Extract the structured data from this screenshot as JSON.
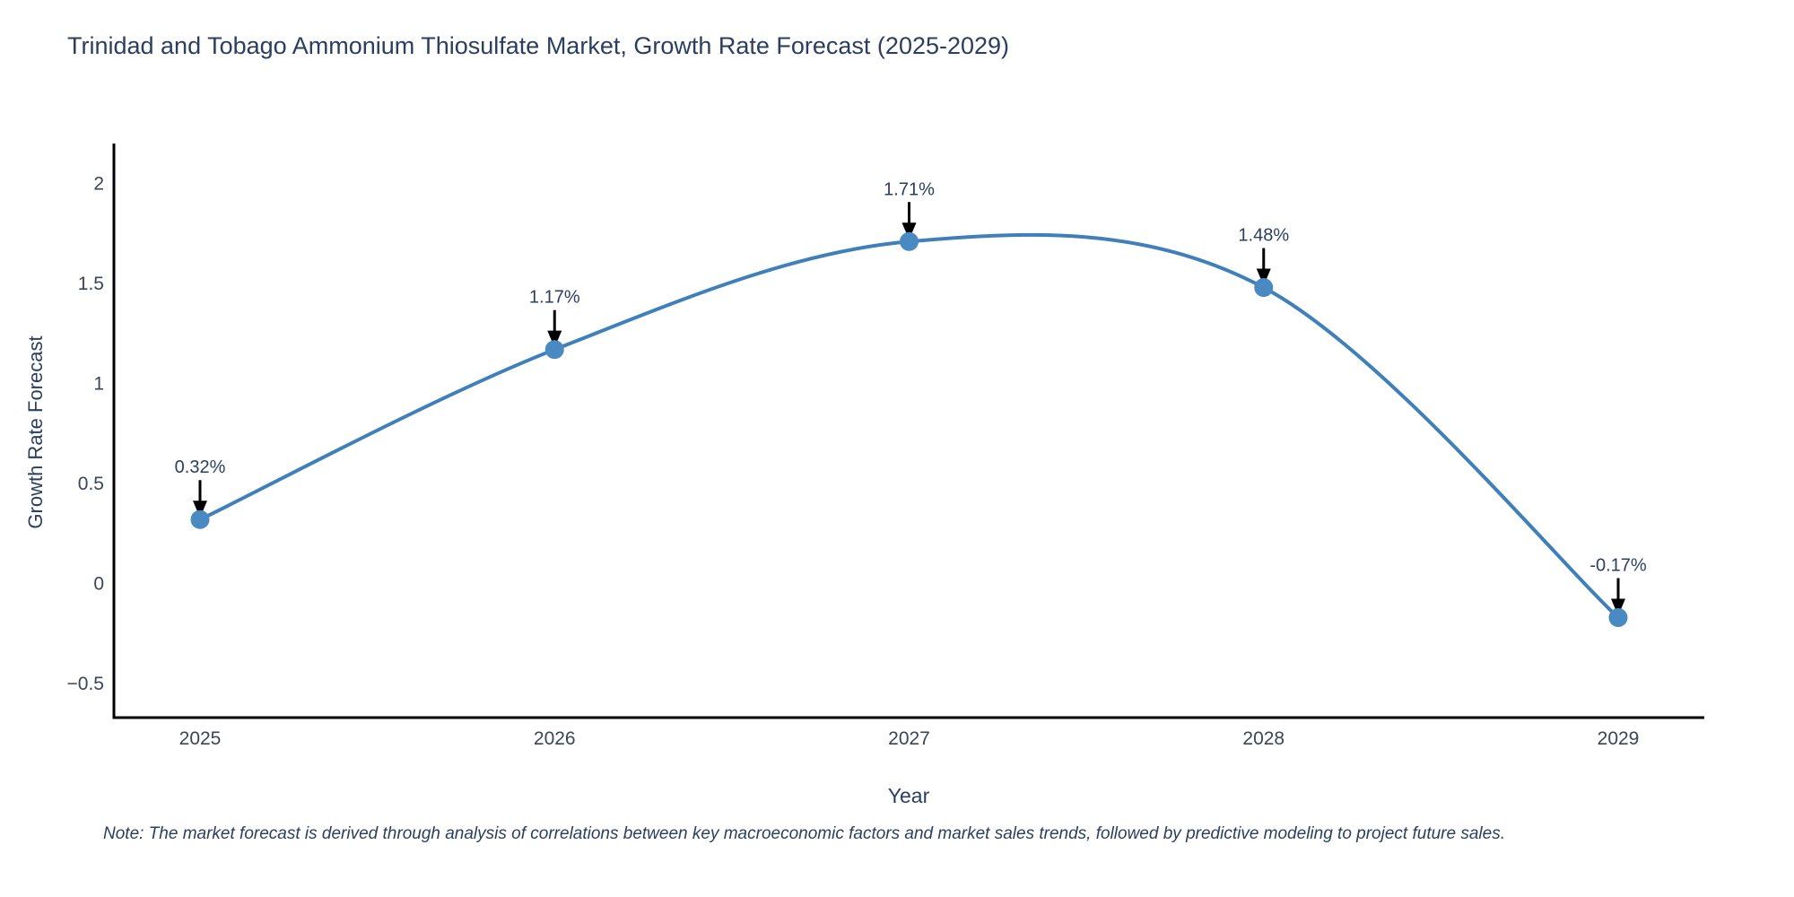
{
  "title": "Trinidad and Tobago Ammonium Thiosulfate Market, Growth Rate Forecast (2025-2029)",
  "footnote": "Note: The market forecast is derived through analysis of correlations between key macroeconomic factors and market sales trends, followed by predictive modeling to project future sales.",
  "chart_data": {
    "type": "line",
    "line_shape": "spline",
    "title": "Trinidad and Tobago Ammonium Thiosulfate Market, Growth Rate Forecast (2025-2029)",
    "xlabel": "Year",
    "ylabel": "Growth Rate Forecast",
    "x": [
      2025,
      2026,
      2027,
      2028,
      2029
    ],
    "values": [
      0.32,
      1.17,
      1.71,
      1.48,
      -0.17
    ],
    "point_labels": [
      "0.32%",
      "1.17%",
      "1.71%",
      "1.48%",
      "-0.17%"
    ],
    "xtick_labels": [
      "2025",
      "2026",
      "2027",
      "2028",
      "2029"
    ],
    "yticks": [
      2,
      1.5,
      1,
      0.5,
      0,
      -0.5
    ],
    "ytick_labels": [
      "2",
      "1.5",
      "1",
      "0.5",
      "0",
      "−0.5"
    ],
    "ylim": [
      -0.67,
      2.2
    ],
    "grid": false,
    "legend": "none",
    "colors": {
      "line": "#3f80bb",
      "marker": "#4a8ac2",
      "axis": "#000000",
      "arrow": "#000000",
      "text": "#2a3f5f"
    }
  }
}
